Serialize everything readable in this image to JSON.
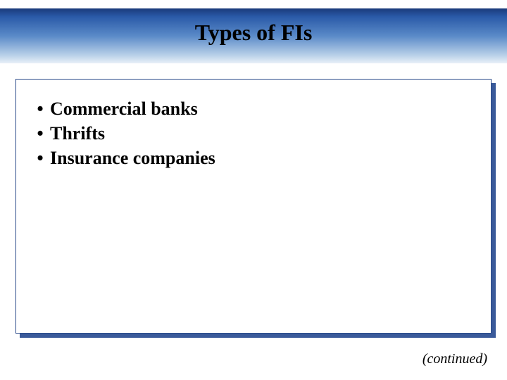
{
  "slide": {
    "title": "Types of FIs",
    "bullets": [
      "Commercial banks",
      "Thrifts",
      "Insurance companies"
    ],
    "footer_note": "(continued)"
  },
  "styling": {
    "header_gradient_colors": [
      "#1a3a7a",
      "#2a5aa8",
      "#5a8ac8",
      "#b8d0e8",
      "#e8f0f8"
    ],
    "content_border_color": "#2a4a8a",
    "content_shadow_color": "#3a5a9a",
    "background_color": "#ffffff",
    "title_fontsize": 32,
    "bullet_fontsize": 26,
    "footer_fontsize": 20,
    "font_family": "Times New Roman",
    "text_color": "#000000"
  }
}
